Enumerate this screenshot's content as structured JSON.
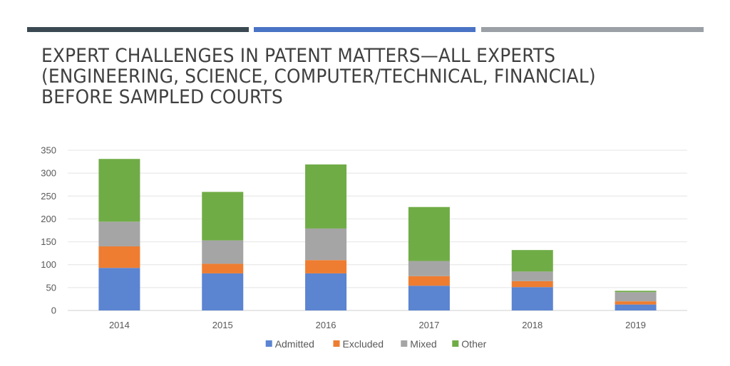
{
  "header": {
    "strip_colors": [
      "#3b4a52",
      "#4a73c5",
      "#9aa0a6"
    ]
  },
  "chart_data": {
    "type": "bar",
    "stacked": true,
    "title": "EXPERT CHALLENGES IN PATENT MATTERS—ALL EXPERTS (ENGINEERING, SCIENCE, COMPUTER/TECHNICAL, FINANCIAL) BEFORE SAMPLED COURTS",
    "categories": [
      "2014",
      "2015",
      "2016",
      "2017",
      "2018",
      "2019"
    ],
    "series": [
      {
        "name": "Admitted",
        "color": "#5b84d1",
        "values": [
          93,
          81,
          81,
          54,
          51,
          13
        ]
      },
      {
        "name": "Excluded",
        "color": "#ee7d31",
        "values": [
          47,
          21,
          29,
          21,
          13,
          7
        ]
      },
      {
        "name": "Mixed",
        "color": "#a5a5a5",
        "values": [
          54,
          51,
          69,
          33,
          21,
          20
        ]
      },
      {
        "name": "Other",
        "color": "#70ac46",
        "values": [
          137,
          106,
          140,
          118,
          47,
          3
        ]
      }
    ],
    "ylim": [
      0,
      350
    ],
    "yticks": [
      "0",
      "50",
      "100",
      "150",
      "200",
      "250",
      "300",
      "350"
    ],
    "grid": true,
    "legend": "bottom",
    "xlabel": "",
    "ylabel": ""
  }
}
